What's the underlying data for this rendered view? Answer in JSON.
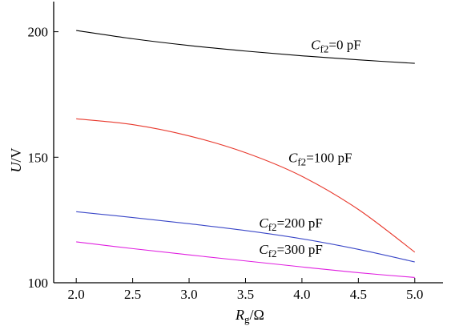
{
  "chart_data": {
    "type": "line",
    "xlabel": {
      "main": "R",
      "sub": "g",
      "unit": "/Ω"
    },
    "ylabel": {
      "main": "U",
      "unit": "/V"
    },
    "xlim": [
      1.8,
      5.25
    ],
    "ylim": [
      100,
      212
    ],
    "xticks": [
      "2.0",
      "2.5",
      "3.0",
      "3.5",
      "4.0",
      "4.5",
      "5.0"
    ],
    "yticks": [
      "100",
      "150",
      "200"
    ],
    "grid": false,
    "series": [
      {
        "name": "Cf2=0 pF",
        "label_parts": {
          "var": "C",
          "sub": "f2",
          "rest": "=0 pF"
        },
        "color": "#000000",
        "x": [
          2.0,
          2.5,
          3.0,
          3.5,
          4.0,
          4.5,
          5.0
        ],
        "y": [
          200.5,
          197.2,
          194.5,
          192.3,
          190.4,
          188.8,
          187.4
        ]
      },
      {
        "name": "Cf2=100 pF",
        "label_parts": {
          "var": "C",
          "sub": "f2",
          "rest": "=100 pF"
        },
        "color": "#e8392d",
        "x": [
          2.0,
          2.5,
          3.0,
          3.5,
          4.0,
          4.5,
          5.0
        ],
        "y": [
          165.3,
          163.0,
          158.5,
          151.8,
          142.4,
          129.2,
          112.2
        ]
      },
      {
        "name": "Cf2=200 pF",
        "label_parts": {
          "var": "C",
          "sub": "f2",
          "rest": "=200 pF"
        },
        "color": "#3b48c8",
        "x": [
          2.0,
          2.5,
          3.0,
          3.5,
          4.0,
          4.5,
          5.0
        ],
        "y": [
          128.3,
          126.0,
          123.5,
          120.8,
          117.5,
          113.3,
          108.3
        ]
      },
      {
        "name": "Cf2=300 pF",
        "label_parts": {
          "var": "C",
          "sub": "f2",
          "rest": "=300 pF"
        },
        "color": "#e020e0",
        "x": [
          2.0,
          2.5,
          3.0,
          3.5,
          4.0,
          4.5,
          5.0
        ],
        "y": [
          116.3,
          113.6,
          111.1,
          108.7,
          106.3,
          104.0,
          102.1
        ]
      }
    ]
  }
}
